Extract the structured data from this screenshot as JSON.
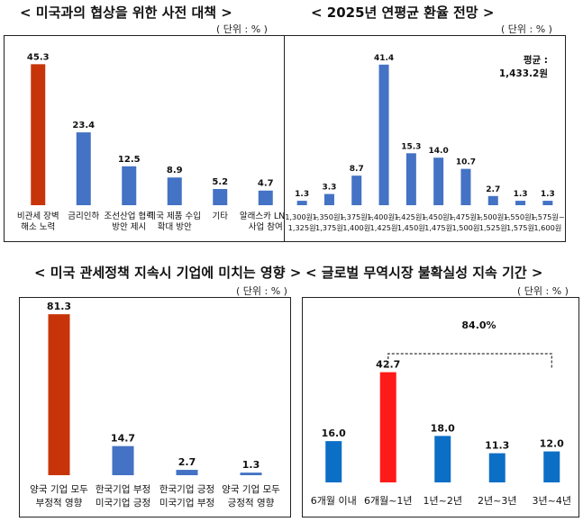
{
  "chart_data": [
    {
      "type": "bar",
      "title": "< 미국과의 협상을 위한 사전 대책 >",
      "unit": "( 단위 : % )",
      "categories": [
        [
          "비관세 장벽",
          "해소 노력"
        ],
        [
          "금리인하"
        ],
        [
          "조선산업 협력",
          "방안 제시"
        ],
        [
          "미국 제품 수입",
          "확대 방안"
        ],
        [
          "기타"
        ],
        [
          "알래스카 LNG",
          "사업 참여"
        ]
      ],
      "values": [
        45.3,
        23.4,
        12.5,
        8.9,
        5.2,
        4.7
      ],
      "value_labels": [
        "45.3",
        "23.4",
        "12.5",
        "8.9",
        "5.2",
        "4.7"
      ],
      "ylim": [
        0,
        48
      ],
      "highlight_index": 0,
      "colors": {
        "bar": "#4472c4",
        "highlight": "#c8340a"
      }
    },
    {
      "type": "bar",
      "title": "< 2025년 연평균 환율 전망 >",
      "unit": "( 단위 : % )",
      "categories": [
        [
          "1,300원~",
          "1,325원"
        ],
        [
          "1,350원~",
          "1,375원"
        ],
        [
          "1,375원~",
          "1,400원"
        ],
        [
          "1,400원~",
          "1,425원"
        ],
        [
          "1,425원~",
          "1,450원"
        ],
        [
          "1,450원~",
          "1,475원"
        ],
        [
          "1,475원~",
          "1,500원"
        ],
        [
          "1,500원~",
          "1,525원"
        ],
        [
          "1,550원~",
          "1,575원"
        ],
        [
          "1,575원~",
          "1,600원"
        ]
      ],
      "values": [
        1.3,
        3.3,
        8.7,
        41.4,
        15.3,
        14.0,
        10.7,
        2.7,
        1.3,
        1.3
      ],
      "value_labels": [
        "1.3",
        "3.3",
        "8.7",
        "41.4",
        "15.3",
        "14.0",
        "10.7",
        "2.7",
        "1.3",
        "1.3"
      ],
      "ylim": [
        0,
        44
      ],
      "annotation": [
        "평균 :",
        "1,433.2원"
      ],
      "colors": {
        "bar": "#4472c4"
      }
    },
    {
      "type": "bar",
      "title": "< 미국 관세정책 지속시 기업에 미치는 영향 >",
      "unit": "( 단위 : % )",
      "categories": [
        [
          "양국 기업 모두",
          "부정적 영향"
        ],
        [
          "한국기업 부정",
          "미국기업 긍정"
        ],
        [
          "한국기업 긍정",
          "미국기업 부정"
        ],
        [
          "양국 기업 모두",
          "긍정적 영향"
        ]
      ],
      "values": [
        81.3,
        14.7,
        2.7,
        1.3
      ],
      "value_labels": [
        "81.3",
        "14.7",
        "2.7",
        "1.3"
      ],
      "ylim": [
        0,
        85
      ],
      "highlight_index": 0,
      "colors": {
        "bar": "#4472c4",
        "highlight": "#c8340a"
      }
    },
    {
      "type": "bar",
      "title": "< 글로벌 무역시장 불확실성 지속 기간 >",
      "unit": "( 단위 : % )",
      "categories": [
        [
          "6개월 이내"
        ],
        [
          "6개월~1년"
        ],
        [
          "1년~2년"
        ],
        [
          "2년~3년"
        ],
        [
          "3년~4년"
        ]
      ],
      "values": [
        16.0,
        42.7,
        18.0,
        11.3,
        12.0
      ],
      "value_labels": [
        "16.0",
        "42.7",
        "18.0",
        "11.3",
        "12.0"
      ],
      "ylim": [
        0,
        68
      ],
      "highlight_index": 1,
      "bracket": {
        "from": 1,
        "to": 4,
        "label": "84.0%"
      },
      "colors": {
        "bar": "#0b6fc6",
        "highlight": "#ff1a1a"
      }
    }
  ]
}
